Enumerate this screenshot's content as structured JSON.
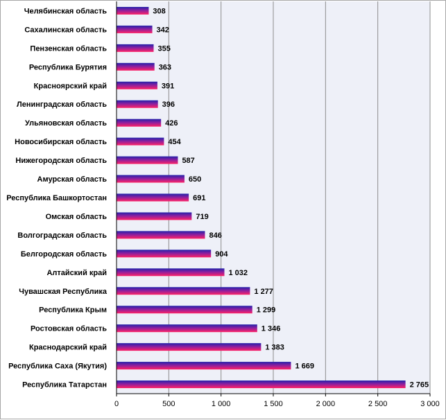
{
  "chart_data": {
    "type": "bar",
    "orientation": "horizontal",
    "categories": [
      "Челябинская  область",
      "Сахалинская  область",
      "Пензенская  область",
      "Республика  Бурятия",
      "Красноярский  край",
      "Ленинградская  область",
      "Ульяновская  область",
      "Новосибирская  область",
      "Нижегородская  область",
      "Амурская  область",
      "Республика  Башкортостан",
      "Омская  область",
      "Волгоградская  область",
      "Белгородская  область",
      "Алтайский  край",
      "Чувашская   Республика",
      "Республика  Крым",
      "Ростовская  область",
      "Краснодарский  край",
      "Республика  Саха  (Якутия)",
      "Республика  Татарстан"
    ],
    "values": [
      308,
      342,
      355,
      363,
      391,
      396,
      426,
      454,
      587,
      650,
      691,
      719,
      846,
      904,
      1032,
      1277,
      1299,
      1346,
      1383,
      1669,
      2765
    ],
    "value_labels": [
      "308",
      "342",
      "355",
      "363",
      "391",
      "396",
      "426",
      "454",
      "587",
      "650",
      "691",
      "719",
      "846",
      "904",
      "1 032",
      "1 277",
      "1 299",
      "1 346",
      "1 383",
      "1 669",
      "2 765"
    ],
    "x_ticks": [
      0,
      500,
      1000,
      1500,
      2000,
      2500,
      3000
    ],
    "x_tick_labels": [
      "0",
      "500",
      "1 000",
      "1 500",
      "2 000",
      "2 500",
      "3 000"
    ],
    "xlim": [
      0,
      3000
    ],
    "title": "",
    "xlabel": "",
    "ylabel": "",
    "grid": "vertical",
    "legend": "none",
    "colors": {
      "bar_top": "#2222aa",
      "bar_bottom": "#ff2266",
      "plot_bg": "#eef0f8",
      "grid": "#8c8c8c"
    }
  }
}
